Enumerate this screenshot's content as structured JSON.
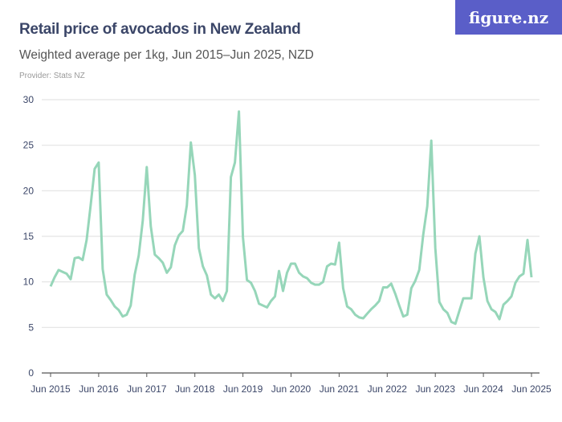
{
  "header": {
    "title": "Retail price of avocados in New Zealand",
    "subtitle": "Weighted average per 1kg, Jun 2015–Jun 2025, NZD",
    "provider": "Provider: Stats NZ",
    "logo": "figure.nz"
  },
  "colors": {
    "line": "#96d6b9",
    "grid": "#e3e3e3",
    "axis": "#555555",
    "title": "#3b4668",
    "logo_bg": "#5a5ec8"
  },
  "chart_data": {
    "type": "line",
    "title": "Retail price of avocados in New Zealand",
    "subtitle": "Weighted average per 1kg, Jun 2015–Jun 2025, NZD",
    "ylim": [
      0,
      30
    ],
    "yticks": [
      0,
      5,
      10,
      15,
      20,
      25,
      30
    ],
    "xticks": [
      "Jun 2015",
      "Jun 2016",
      "Jun 2017",
      "Jun 2018",
      "Jun 2019",
      "Jun 2020",
      "Jun 2021",
      "Jun 2022",
      "Jun 2023",
      "Jun 2024",
      "Jun 2025"
    ],
    "grid": true,
    "x_start": "2015-06",
    "x_end": "2025-06",
    "frequency": "monthly",
    "values": [
      9.5,
      10.5,
      11.3,
      11.1,
      10.9,
      10.3,
      12.6,
      12.7,
      12.4,
      14.6,
      18.4,
      22.4,
      23.1,
      11.4,
      8.6,
      8.0,
      7.3,
      6.9,
      6.2,
      6.4,
      7.4,
      10.8,
      12.9,
      16.7,
      22.6,
      16.1,
      13.0,
      12.6,
      12.1,
      11.0,
      11.6,
      14.0,
      15.1,
      15.6,
      18.4,
      25.3,
      21.7,
      13.7,
      11.7,
      10.7,
      8.6,
      8.2,
      8.6,
      7.9,
      9.0,
      21.5,
      23.1,
      28.7,
      14.9,
      10.2,
      9.9,
      9.0,
      7.6,
      7.4,
      7.2,
      7.9,
      8.4,
      11.2,
      9.0,
      11.0,
      12.0,
      12.0,
      11.0,
      10.6,
      10.4,
      9.9,
      9.7,
      9.7,
      10.0,
      11.7,
      12.0,
      11.9,
      14.3,
      9.3,
      7.3,
      7.0,
      6.4,
      6.1,
      6.0,
      6.5,
      7.0,
      7.4,
      7.9,
      9.4,
      9.4,
      9.8,
      8.7,
      7.4,
      6.2,
      6.4,
      9.3,
      10.1,
      11.3,
      15.2,
      18.3,
      25.5,
      13.7,
      7.8,
      7.0,
      6.6,
      5.6,
      5.4,
      6.8,
      8.2,
      8.2,
      8.2,
      13.1,
      15.0,
      10.5,
      7.9,
      7.0,
      6.7,
      5.9,
      7.5,
      7.9,
      8.4,
      9.9,
      10.6,
      10.9,
      14.6,
      10.5
    ]
  }
}
